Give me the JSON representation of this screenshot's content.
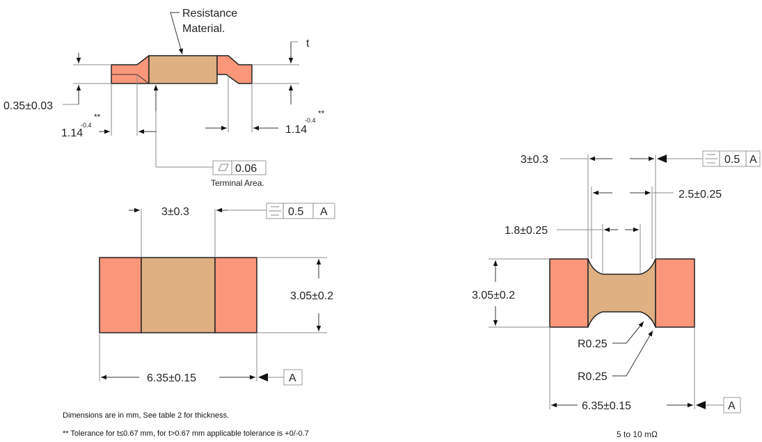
{
  "colors": {
    "terminal": "#FA967A",
    "resistor": "#DEB082",
    "outline": "#222222"
  },
  "side_view": {
    "material_label_1": "Resistance",
    "material_label_2": "Material.",
    "t_label": "t",
    "height_dim": "0.35±0.03",
    "left_terminal_dim": "1.14",
    "left_terminal_tol": "-0.4",
    "left_terminal_mark": "**",
    "right_terminal_dim": "1.14",
    "right_terminal_tol": "-0.4",
    "right_terminal_mark": "**",
    "flatness_value": "0.06",
    "terminal_area_label": "Terminal Area."
  },
  "top_view_left": {
    "width_dim": "3±0.3",
    "symmetry_value": "0.5",
    "symmetry_datum": "A",
    "height_dim": "3.05±0.2",
    "length_dim": "6.35±0.15",
    "datum_label": "A"
  },
  "top_view_right": {
    "width_dim": "3±0.3",
    "symmetry_value": "0.5",
    "symmetry_datum": "A",
    "inner_width_dim": "2.5±0.25",
    "neck_width_dim": "1.8±0.25",
    "height_dim": "3.05±0.2",
    "radius_1": "R0.25",
    "radius_2": "R0.25",
    "length_dim": "6.35±0.15",
    "datum_label": "A",
    "caption": "5 to 10 mΩ"
  },
  "notes": {
    "line1": "Dimensions are in mm, See table 2 for thickness.",
    "line2": "** Tolerance for t≤0.67 mm, for t>0.67 mm applicable tolerance is +0/-0.7"
  }
}
